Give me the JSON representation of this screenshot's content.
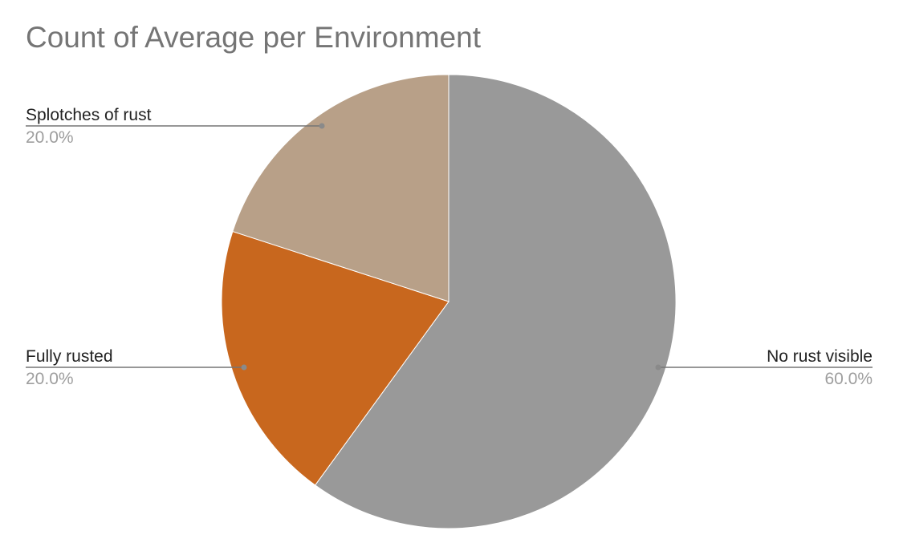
{
  "chart_data": {
    "type": "pie",
    "title": "Count of Average per Environment",
    "slices": [
      {
        "label": "No rust visible",
        "value": 60.0,
        "percent_label": "60.0%",
        "color": "#999999"
      },
      {
        "label": "Fully rusted",
        "value": 20.0,
        "percent_label": "20.0%",
        "color": "#c8671e"
      },
      {
        "label": "Splotches of rust",
        "value": 20.0,
        "percent_label": "20.0%",
        "color": "#b8a088"
      }
    ],
    "start_angle": "12 o'clock, clockwise",
    "label_style": "callout lines with name and percent",
    "legend": "none"
  }
}
